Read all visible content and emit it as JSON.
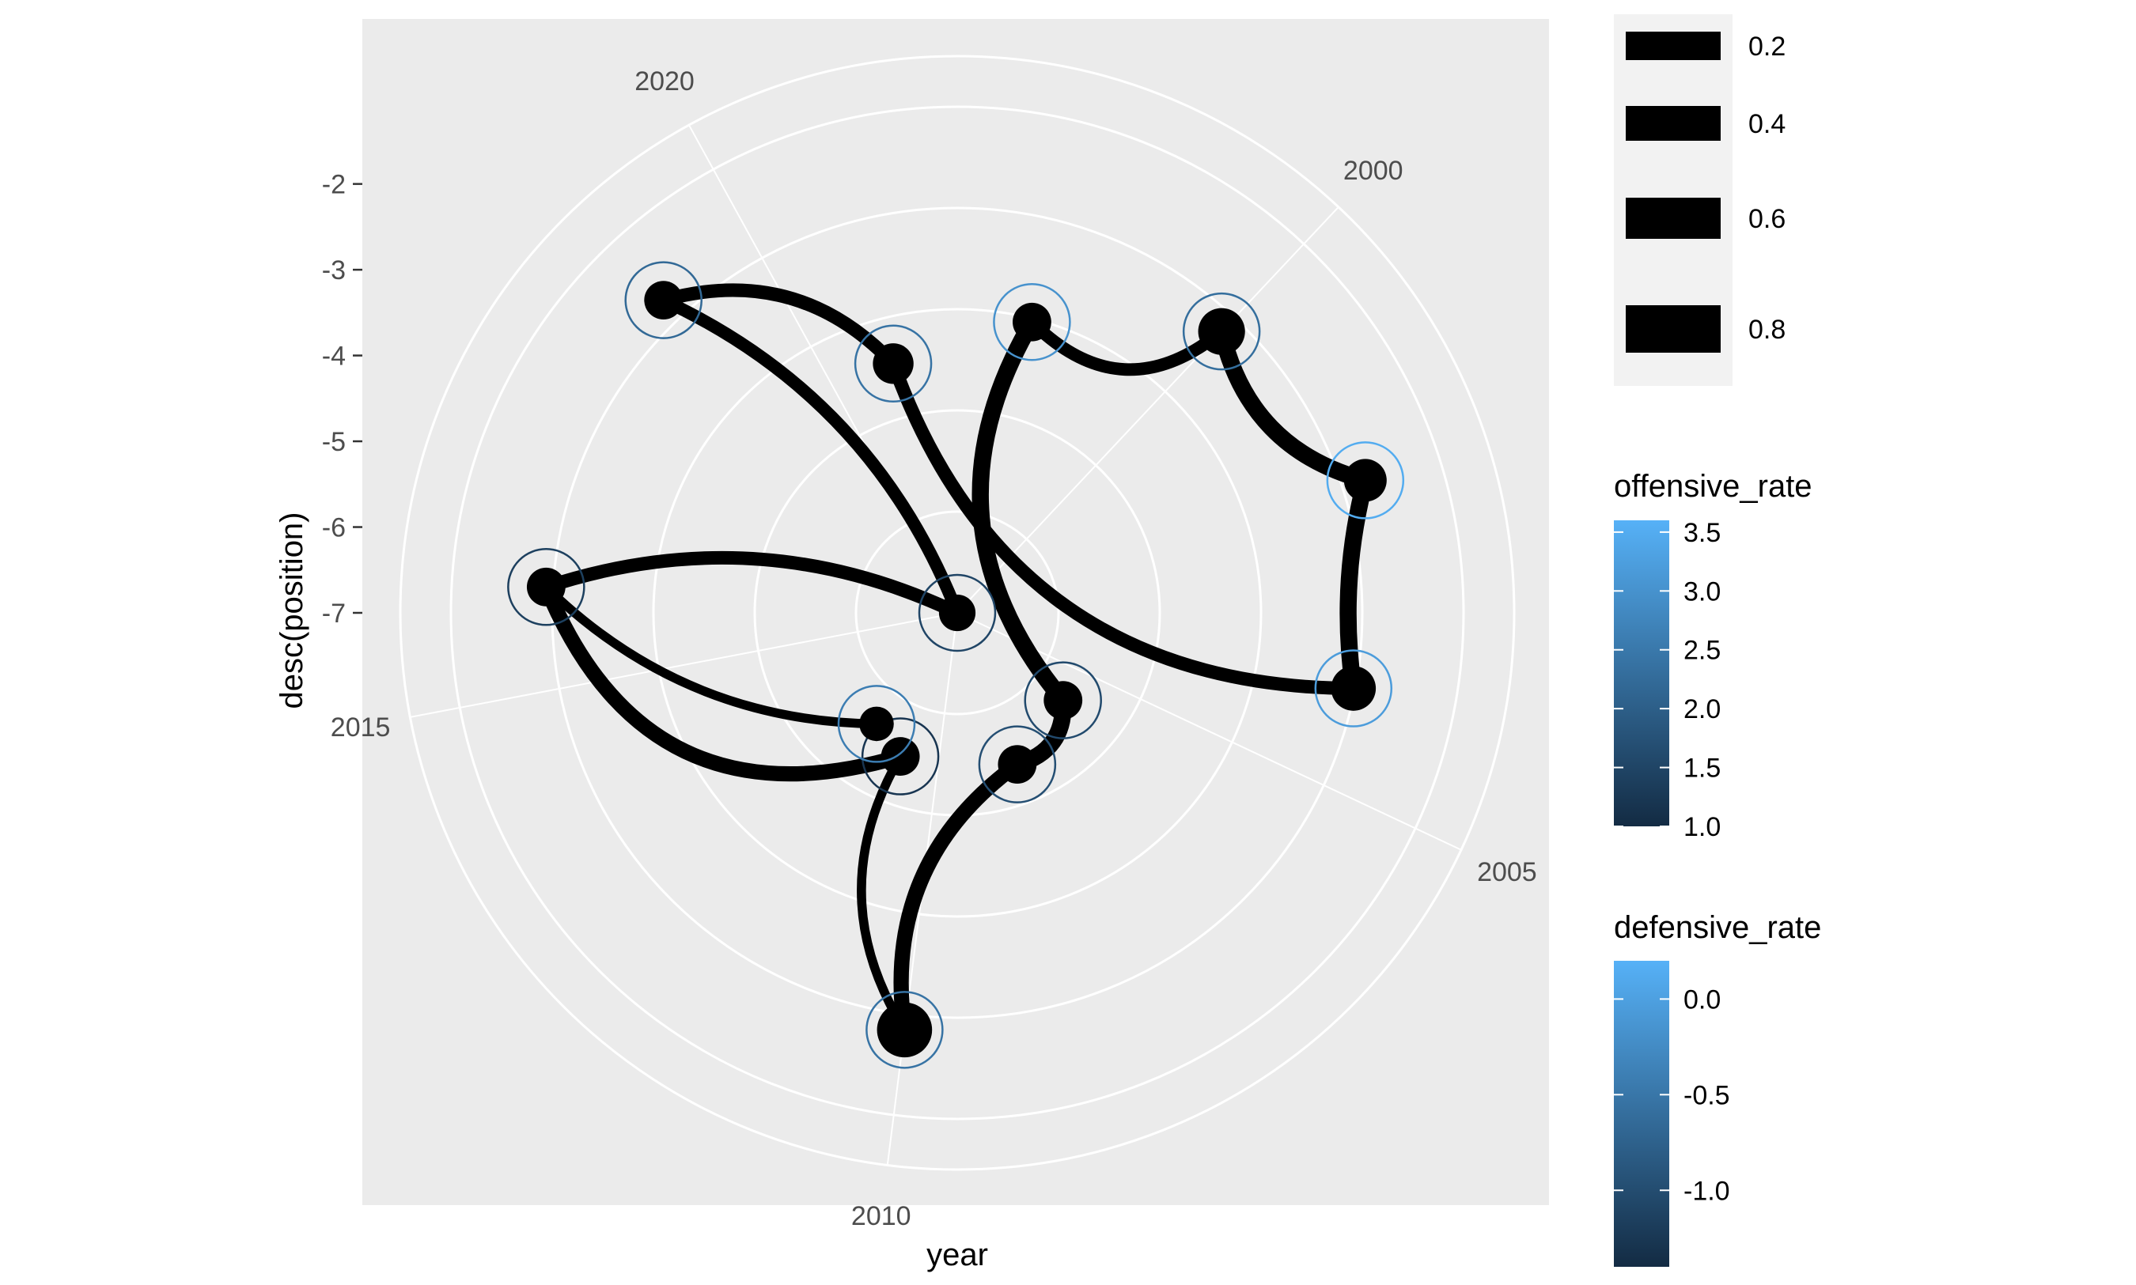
{
  "chart_data": {
    "type": "line",
    "coord": "polar",
    "title": "",
    "xlabel": "year",
    "ylabel": "desc(position)",
    "y_ticks": [
      -2,
      -3,
      -4,
      -5,
      -6,
      -7
    ],
    "ylim": [
      -1.1,
      -7
    ],
    "xlim": [
      1997,
      2022
    ],
    "angle_labels": [
      "2000",
      "2005",
      "2010",
      "2015",
      "2020"
    ],
    "points": [
      {
        "year": 1998,
        "position": -3.5,
        "offensive_rate": 3.0,
        "defensive_rate": 0.0,
        "size": 0.4
      },
      {
        "year": 2000,
        "position": -2.5,
        "offensive_rate": 2.3,
        "defensive_rate": -0.9,
        "size": 0.6
      },
      {
        "year": 2002,
        "position": -2.0,
        "offensive_rate": 3.5,
        "defensive_rate": 0.2,
        "size": 0.5
      },
      {
        "year": 2004,
        "position": -2.3,
        "offensive_rate": 3.2,
        "defensive_rate": -0.3,
        "size": 0.55
      },
      {
        "year": 2006,
        "position": -5.4,
        "offensive_rate": 1.6,
        "defensive_rate": -1.2,
        "size": 0.4
      },
      {
        "year": 2008,
        "position": -5.1,
        "offensive_rate": 1.7,
        "defensive_rate": -1.1,
        "size": 0.4
      },
      {
        "year": 2010,
        "position": -2.1,
        "offensive_rate": 2.4,
        "defensive_rate": -0.7,
        "size": 0.8
      },
      {
        "year": 2011,
        "position": -5.2,
        "offensive_rate": 1.2,
        "defensive_rate": -1.3,
        "size": 0.4
      },
      {
        "year": 2012,
        "position": -5.4,
        "offensive_rate": 2.6,
        "defensive_rate": -0.5,
        "size": 0.3
      },
      {
        "year": 2016,
        "position": -2.2,
        "offensive_rate": 1.4,
        "defensive_rate": -1.0,
        "size": 0.4
      },
      {
        "year": 2019,
        "position": -2.0,
        "offensive_rate": 2.2,
        "defensive_rate": -0.6,
        "size": 0.4
      },
      {
        "year": 1997,
        "position": -7.0,
        "offensive_rate": 1.5,
        "defensive_rate": -1.0,
        "size": 0.35
      },
      {
        "year": 2021,
        "position": -4.0,
        "offensive_rate": 2.4,
        "defensive_rate": -0.5,
        "size": 0.45
      }
    ],
    "paths": [
      {
        "from": 7,
        "to": 6,
        "size": 0.25,
        "curvature": 0.3
      },
      {
        "from": 6,
        "to": 5,
        "size": 0.6,
        "curvature": -0.3
      },
      {
        "from": 5,
        "to": 4,
        "size": 0.7,
        "curvature": 0.4
      },
      {
        "from": 4,
        "to": 0,
        "size": 0.7,
        "curvature": -0.35
      },
      {
        "from": 0,
        "to": 1,
        "size": 0.45,
        "curvature": 0.45
      },
      {
        "from": 9,
        "to": 8,
        "size": 0.25,
        "curvature": 0.2
      },
      {
        "from": 9,
        "to": 7,
        "size": 0.6,
        "curvature": 0.45
      },
      {
        "from": 9,
        "to": 11,
        "size": 0.5,
        "curvature": -0.2
      },
      {
        "from": 11,
        "to": 10,
        "size": 0.45,
        "curvature": 0.2
      },
      {
        "from": 10,
        "to": 12,
        "size": 0.5,
        "curvature": -0.3
      },
      {
        "from": 12,
        "to": 3,
        "size": 0.5,
        "curvature": 0.35
      },
      {
        "from": 3,
        "to": 2,
        "size": 0.7,
        "curvature": -0.1
      },
      {
        "from": 2,
        "to": 1,
        "size": 0.7,
        "curvature": -0.3
      }
    ],
    "legend_size": {
      "title": "",
      "labels": [
        "0.2",
        "0.4",
        "0.6",
        "0.8"
      ],
      "values": [
        0.2,
        0.4,
        0.6,
        0.8
      ]
    },
    "legend_offensive": {
      "title": "offensive_rate",
      "labels": [
        "3.5",
        "3.0",
        "2.5",
        "2.0",
        "1.5",
        "1.0"
      ],
      "values": [
        3.5,
        3.0,
        2.5,
        2.0,
        1.5,
        1.0
      ],
      "range": [
        1.0,
        3.6
      ]
    },
    "legend_defensive": {
      "title": "defensive_rate",
      "labels": [
        "0.0",
        "-0.5",
        "-1.0"
      ],
      "values": [
        0.0,
        -0.5,
        -1.0
      ],
      "range": [
        -1.4,
        0.2
      ]
    },
    "colors": {
      "low": "#132B43",
      "high": "#56B1F7",
      "panel": "#EBEBEB",
      "grid": "#FFFFFF",
      "axis_text": "#4D4D4D"
    }
  }
}
